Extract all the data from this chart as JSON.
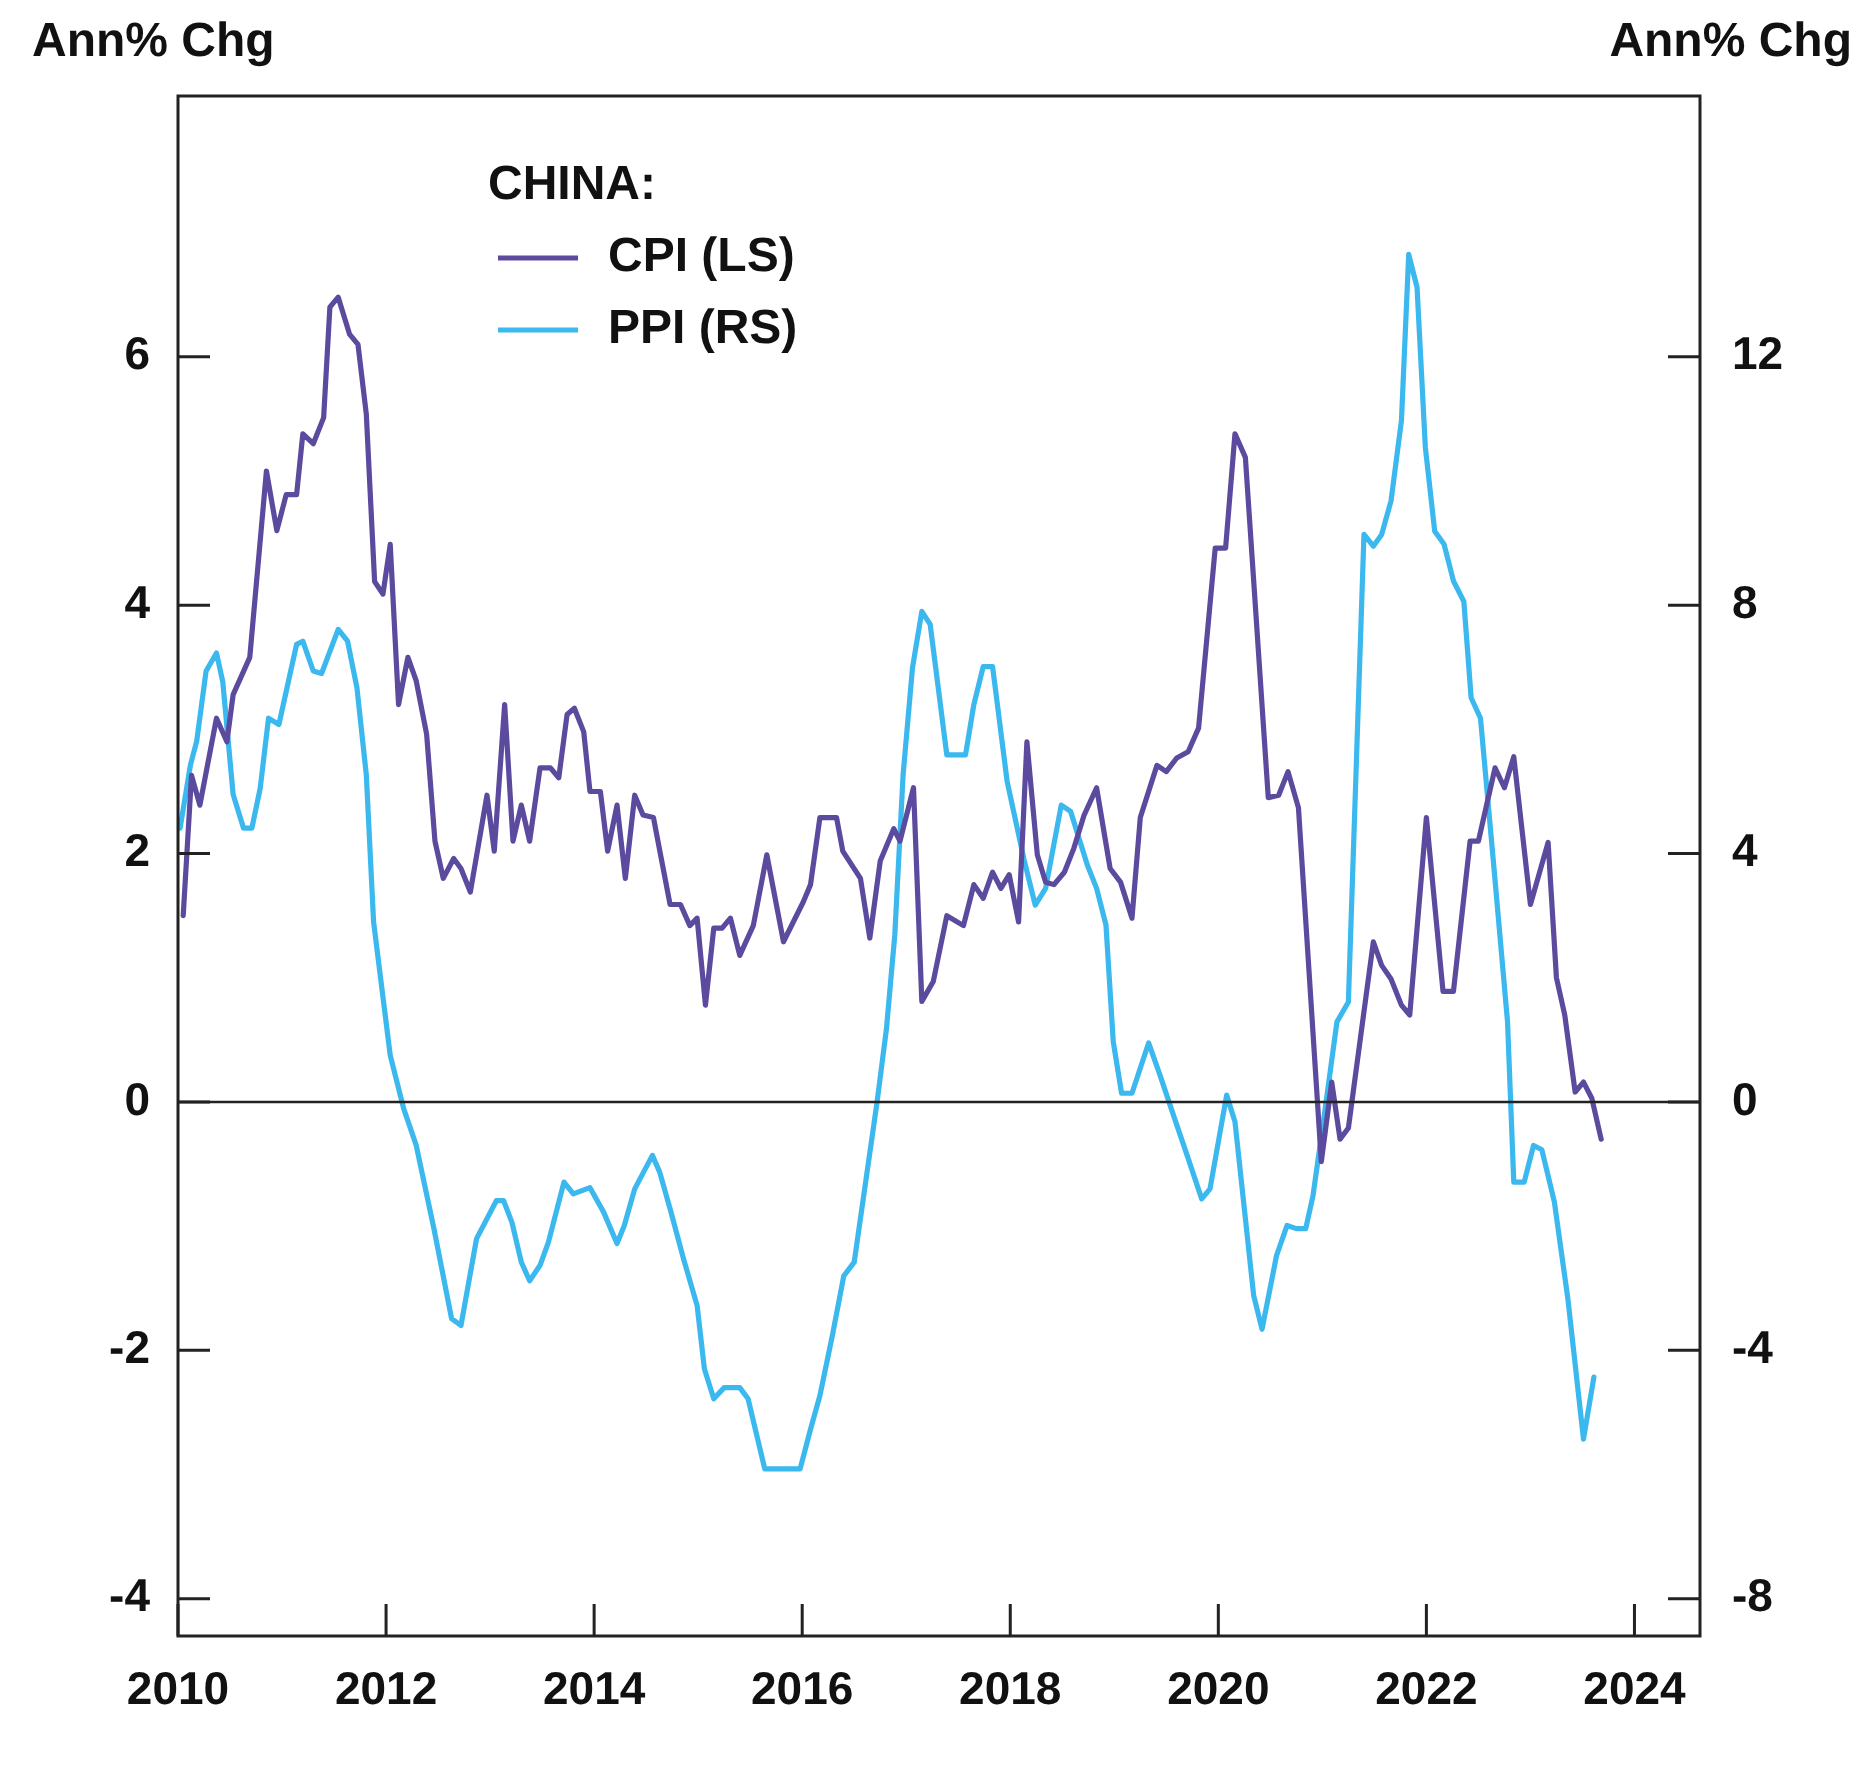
{
  "chart_data": {
    "type": "line",
    "ylabel": "Ann% Chg",
    "y2label": "Ann% Chg",
    "legend_title": "CHINA:",
    "legend": "top left",
    "grid": false,
    "xlim": [
      2010,
      2024.63
    ],
    "xticks": [
      2010,
      2012,
      2014,
      2016,
      2018,
      2020,
      2022,
      2024
    ],
    "ylim": [
      -4.3,
      8.1
    ],
    "yticks": [
      -4,
      -2,
      0,
      2,
      4,
      6
    ],
    "y2lim": [
      -8.6,
      16.2
    ],
    "y2ticks": [
      -8,
      -4,
      0,
      4,
      8,
      12
    ],
    "ref_lines": [
      {
        "axis": "y",
        "value": 0,
        "color": "#222222"
      }
    ],
    "series": [
      {
        "name": "CPI (LS)",
        "color": "#5b4a9e",
        "axis": "y",
        "x": [
          2010.05,
          2010.13,
          2010.21,
          2010.37,
          2010.47,
          2010.53,
          2010.69,
          2010.85,
          2010.95,
          2011.04,
          2011.14,
          2011.2,
          2011.3,
          2011.4,
          2011.46,
          2011.54,
          2011.65,
          2011.73,
          2011.81,
          2011.89,
          2011.97,
          2012.04,
          2012.12,
          2012.21,
          2012.29,
          2012.39,
          2012.47,
          2012.55,
          2012.65,
          2012.72,
          2012.81,
          2012.97,
          2013.04,
          2013.14,
          2013.22,
          2013.3,
          2013.38,
          2013.48,
          2013.58,
          2013.66,
          2013.74,
          2013.81,
          2013.9,
          2013.96,
          2014.06,
          2014.13,
          2014.22,
          2014.3,
          2014.39,
          2014.47,
          2014.57,
          2014.73,
          2014.83,
          2014.92,
          2014.99,
          2015.07,
          2015.15,
          2015.23,
          2015.31,
          2015.4,
          2015.53,
          2015.66,
          2015.82,
          2016.01,
          2016.08,
          2016.17,
          2016.33,
          2016.39,
          2016.56,
          2016.65,
          2016.75,
          2016.88,
          2016.94,
          2017.07,
          2017.15,
          2017.26,
          2017.39,
          2017.55,
          2017.65,
          2017.74,
          2017.83,
          2017.91,
          2017.99,
          2018.08,
          2018.16,
          2018.26,
          2018.34,
          2018.42,
          2018.52,
          2018.61,
          2018.71,
          2018.83,
          2018.96,
          2019.06,
          2019.17,
          2019.25,
          2019.41,
          2019.5,
          2019.6,
          2019.71,
          2019.81,
          2019.97,
          2020.07,
          2020.16,
          2020.26,
          2020.48,
          2020.58,
          2020.67,
          2020.77,
          2020.99,
          2021.09,
          2021.17,
          2021.25,
          2021.49,
          2021.57,
          2021.66,
          2021.76,
          2021.84,
          2022.0,
          2022.16,
          2022.26,
          2022.42,
          2022.5,
          2022.66,
          2022.75,
          2022.84,
          2023.0,
          2023.17,
          2023.25,
          2023.33,
          2023.43,
          2023.51,
          2023.59,
          2023.68
        ],
        "values": [
          1.5,
          2.63,
          2.39,
          3.09,
          2.9,
          3.28,
          3.58,
          5.08,
          4.6,
          4.89,
          4.89,
          5.38,
          5.3,
          5.51,
          6.4,
          6.48,
          6.18,
          6.1,
          5.54,
          4.19,
          4.09,
          4.49,
          3.2,
          3.58,
          3.39,
          2.96,
          2.1,
          1.8,
          1.96,
          1.88,
          1.69,
          2.47,
          2.02,
          3.2,
          2.1,
          2.39,
          2.1,
          2.69,
          2.69,
          2.61,
          3.12,
          3.17,
          2.98,
          2.5,
          2.5,
          2.02,
          2.39,
          1.8,
          2.47,
          2.31,
          2.29,
          1.59,
          1.59,
          1.42,
          1.48,
          0.78,
          1.4,
          1.4,
          1.48,
          1.18,
          1.42,
          1.99,
          1.29,
          1.61,
          1.75,
          2.29,
          2.29,
          2.02,
          1.8,
          1.32,
          1.94,
          2.2,
          2.1,
          2.53,
          0.81,
          0.97,
          1.5,
          1.42,
          1.75,
          1.64,
          1.85,
          1.72,
          1.83,
          1.45,
          2.9,
          1.99,
          1.77,
          1.75,
          1.85,
          2.04,
          2.31,
          2.53,
          1.88,
          1.77,
          1.48,
          2.29,
          2.71,
          2.66,
          2.77,
          2.82,
          3.01,
          4.46,
          4.46,
          5.38,
          5.19,
          2.45,
          2.47,
          2.66,
          2.37,
          -0.48,
          0.16,
          -0.3,
          -0.21,
          1.29,
          1.1,
          0.99,
          0.78,
          0.7,
          2.29,
          0.89,
          0.89,
          2.1,
          2.1,
          2.69,
          2.53,
          2.78,
          1.59,
          2.09,
          1.0,
          0.7,
          0.08,
          0.16,
          0.03,
          -0.3
        ]
      },
      {
        "name": "PPI (RS)",
        "color": "#3bb8ee",
        "axis": "y2",
        "x": [
          2010.02,
          2010.12,
          2010.18,
          2010.27,
          2010.37,
          2010.43,
          2010.53,
          2010.63,
          2010.71,
          2010.79,
          2010.87,
          2010.97,
          2011.14,
          2011.2,
          2011.3,
          2011.38,
          2011.54,
          2011.63,
          2011.72,
          2011.81,
          2011.88,
          2012.04,
          2012.17,
          2012.29,
          2012.46,
          2012.63,
          2012.72,
          2012.87,
          2013.06,
          2013.13,
          2013.21,
          2013.3,
          2013.38,
          2013.48,
          2013.56,
          2013.71,
          2013.8,
          2013.96,
          2014.09,
          2014.22,
          2014.29,
          2014.39,
          2014.56,
          2014.63,
          2014.73,
          2014.86,
          2014.99,
          2015.06,
          2015.15,
          2015.25,
          2015.4,
          2015.48,
          2015.64,
          2015.98,
          2016.08,
          2016.17,
          2016.29,
          2016.4,
          2016.5,
          2016.72,
          2016.81,
          2016.89,
          2016.97,
          2017.06,
          2017.15,
          2017.23,
          2017.39,
          2017.57,
          2017.65,
          2017.74,
          2017.83,
          2017.97,
          2018.13,
          2018.24,
          2018.34,
          2018.49,
          2018.58,
          2018.74,
          2018.83,
          2018.92,
          2018.99,
          2019.07,
          2019.17,
          2019.33,
          2019.44,
          2019.57,
          2019.7,
          2019.84,
          2019.92,
          2020.08,
          2020.16,
          2020.34,
          2020.42,
          2020.56,
          2020.66,
          2020.75,
          2020.84,
          2020.91,
          2021.01,
          2021.14,
          2021.25,
          2021.4,
          2021.49,
          2021.57,
          2021.66,
          2021.76,
          2021.83,
          2021.91,
          2021.99,
          2022.08,
          2022.17,
          2022.26,
          2022.36,
          2022.43,
          2022.52,
          2022.65,
          2022.78,
          2022.84,
          2022.94,
          2023.03,
          2023.11,
          2023.23,
          2023.36,
          2023.51,
          2023.61
        ],
        "values": [
          4.41,
          5.43,
          5.81,
          6.94,
          7.23,
          6.77,
          4.95,
          4.41,
          4.41,
          5.05,
          6.18,
          6.08,
          7.37,
          7.42,
          6.94,
          6.9,
          7.61,
          7.42,
          6.67,
          5.27,
          2.9,
          0.75,
          -0.11,
          -0.7,
          -2.04,
          -3.49,
          -3.6,
          -2.2,
          -1.59,
          -1.59,
          -1.94,
          -2.58,
          -2.88,
          -2.63,
          -2.26,
          -1.29,
          -1.48,
          -1.38,
          -1.77,
          -2.28,
          -1.99,
          -1.4,
          -0.86,
          -1.13,
          -1.72,
          -2.53,
          -3.28,
          -4.3,
          -4.78,
          -4.6,
          -4.6,
          -4.78,
          -5.91,
          -5.91,
          -5.27,
          -4.73,
          -3.76,
          -2.8,
          -2.58,
          0.0,
          1.18,
          2.69,
          5.27,
          6.99,
          7.9,
          7.69,
          5.59,
          5.59,
          6.4,
          7.01,
          7.01,
          5.16,
          3.92,
          3.17,
          3.44,
          4.78,
          4.68,
          3.82,
          3.44,
          2.85,
          0.97,
          0.14,
          0.14,
          0.95,
          0.43,
          -0.22,
          -0.86,
          -1.56,
          -1.4,
          0.11,
          -0.32,
          -3.12,
          -3.66,
          -2.47,
          -1.99,
          -2.04,
          -2.04,
          -1.51,
          -0.32,
          1.29,
          1.61,
          9.14,
          8.95,
          9.14,
          9.68,
          10.97,
          13.65,
          13.12,
          10.54,
          9.19,
          8.98,
          8.39,
          8.06,
          6.51,
          6.18,
          3.76,
          1.29,
          -1.29,
          -1.29,
          -0.7,
          -0.77,
          -1.61,
          -3.17,
          -5.43,
          -4.43
        ]
      }
    ]
  }
}
